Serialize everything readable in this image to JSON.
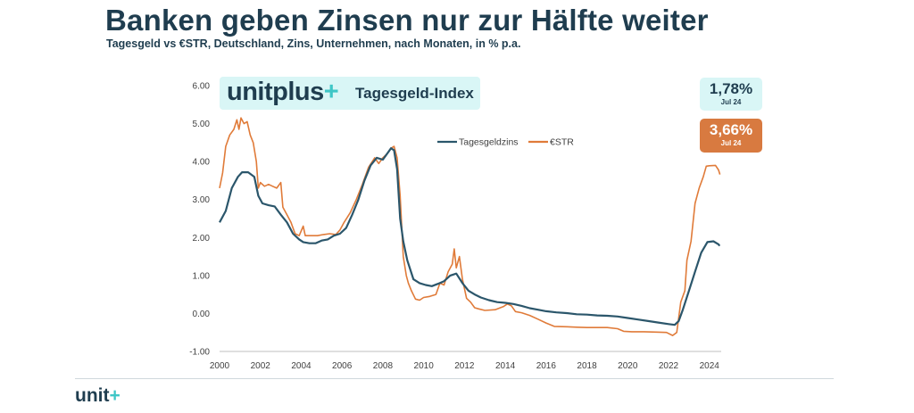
{
  "header": {
    "title": "Banken geben Zinsen nur zur Hälfte weiter",
    "subtitle": "Tagesgeld vs €STR, Deutschland, Zins, Unternehmen, nach Monaten, in % p.a."
  },
  "brand": {
    "logo_text": "unitplus",
    "logo_plus": "+",
    "index_label": "Tagesgeld-Index"
  },
  "badges": [
    {
      "value": "1,78%",
      "date": "Jul 24",
      "series": "Tagesgeldzins"
    },
    {
      "value": "3,66%",
      "date": "Jul 24",
      "series": "€STR"
    }
  ],
  "footer": {
    "logo_text": "unit",
    "logo_plus": "+"
  },
  "colors": {
    "tagesgeld": "#2b566b",
    "estr": "#e07b39",
    "text": "#1f3d4f",
    "accent": "#3ec6c6"
  },
  "chart_data": {
    "type": "line",
    "title": "",
    "xlabel": "",
    "ylabel": "",
    "xlim": [
      2000,
      2024.58
    ],
    "ylim": [
      -1,
      6
    ],
    "y_ticks": [
      -1,
      0,
      1,
      2,
      3,
      4,
      5,
      6
    ],
    "y_tick_labels": [
      "-1.00",
      "0.00",
      "1.00",
      "2.00",
      "3.00",
      "4.00",
      "5.00",
      "6.00"
    ],
    "x_ticks": [
      2000,
      2002,
      2004,
      2006,
      2008,
      2010,
      2012,
      2014,
      2016,
      2018,
      2020,
      2022,
      2024
    ],
    "x_tick_labels": [
      "2000",
      "2002",
      "2004",
      "2006",
      "2008",
      "2010",
      "2012",
      "2014",
      "2016",
      "2018",
      "2020",
      "2022",
      "2024"
    ],
    "legend_position": "top-center",
    "series": [
      {
        "name": "Tagesgeldzins",
        "points": [
          [
            2000,
            2.4
          ],
          [
            2000.3,
            2.7
          ],
          [
            2000.6,
            3.3
          ],
          [
            2000.9,
            3.6
          ],
          [
            2001.1,
            3.72
          ],
          [
            2001.4,
            3.72
          ],
          [
            2001.7,
            3.6
          ],
          [
            2001.9,
            3.1
          ],
          [
            2002.1,
            2.9
          ],
          [
            2002.4,
            2.85
          ],
          [
            2002.7,
            2.82
          ],
          [
            2003.0,
            2.6
          ],
          [
            2003.3,
            2.4
          ],
          [
            2003.6,
            2.1
          ],
          [
            2003.9,
            1.95
          ],
          [
            2004.1,
            1.88
          ],
          [
            2004.4,
            1.85
          ],
          [
            2004.7,
            1.85
          ],
          [
            2005.0,
            1.92
          ],
          [
            2005.3,
            1.95
          ],
          [
            2005.6,
            2.05
          ],
          [
            2005.9,
            2.1
          ],
          [
            2006.2,
            2.25
          ],
          [
            2006.5,
            2.6
          ],
          [
            2006.8,
            3.0
          ],
          [
            2007.1,
            3.5
          ],
          [
            2007.4,
            3.9
          ],
          [
            2007.7,
            4.1
          ],
          [
            2008.0,
            4.05
          ],
          [
            2008.2,
            4.2
          ],
          [
            2008.4,
            4.35
          ],
          [
            2008.55,
            4.3
          ],
          [
            2008.7,
            3.8
          ],
          [
            2008.85,
            2.5
          ],
          [
            2009.0,
            1.9
          ],
          [
            2009.2,
            1.4
          ],
          [
            2009.5,
            0.9
          ],
          [
            2009.8,
            0.8
          ],
          [
            2010.1,
            0.75
          ],
          [
            2010.4,
            0.72
          ],
          [
            2010.7,
            0.78
          ],
          [
            2011.0,
            0.85
          ],
          [
            2011.3,
            1.0
          ],
          [
            2011.6,
            1.05
          ],
          [
            2011.9,
            0.8
          ],
          [
            2012.2,
            0.6
          ],
          [
            2012.5,
            0.5
          ],
          [
            2012.8,
            0.42
          ],
          [
            2013.2,
            0.35
          ],
          [
            2013.6,
            0.3
          ],
          [
            2014.0,
            0.28
          ],
          [
            2014.4,
            0.25
          ],
          [
            2014.8,
            0.2
          ],
          [
            2015.2,
            0.14
          ],
          [
            2015.6,
            0.1
          ],
          [
            2016.0,
            0.06
          ],
          [
            2016.5,
            0.03
          ],
          [
            2017.0,
            0.01
          ],
          [
            2017.5,
            -0.02
          ],
          [
            2018.0,
            -0.03
          ],
          [
            2018.5,
            -0.05
          ],
          [
            2019.0,
            -0.06
          ],
          [
            2019.5,
            -0.08
          ],
          [
            2020.0,
            -0.12
          ],
          [
            2020.5,
            -0.16
          ],
          [
            2021.0,
            -0.2
          ],
          [
            2021.5,
            -0.24
          ],
          [
            2022.0,
            -0.28
          ],
          [
            2022.3,
            -0.3
          ],
          [
            2022.5,
            -0.2
          ],
          [
            2022.7,
            0.1
          ],
          [
            2023.0,
            0.6
          ],
          [
            2023.3,
            1.1
          ],
          [
            2023.6,
            1.6
          ],
          [
            2023.9,
            1.88
          ],
          [
            2024.2,
            1.9
          ],
          [
            2024.45,
            1.82
          ],
          [
            2024.5,
            1.78
          ]
        ]
      },
      {
        "name": "€STR",
        "points": [
          [
            2000,
            3.3
          ],
          [
            2000.15,
            3.7
          ],
          [
            2000.3,
            4.4
          ],
          [
            2000.5,
            4.7
          ],
          [
            2000.7,
            4.85
          ],
          [
            2000.85,
            5.1
          ],
          [
            2000.95,
            4.85
          ],
          [
            2001.05,
            5.15
          ],
          [
            2001.2,
            5.0
          ],
          [
            2001.35,
            5.05
          ],
          [
            2001.5,
            4.7
          ],
          [
            2001.65,
            4.5
          ],
          [
            2001.8,
            4.0
          ],
          [
            2001.9,
            3.3
          ],
          [
            2002.0,
            3.45
          ],
          [
            2002.2,
            3.35
          ],
          [
            2002.4,
            3.4
          ],
          [
            2002.6,
            3.35
          ],
          [
            2002.8,
            3.3
          ],
          [
            2003.0,
            3.45
          ],
          [
            2003.1,
            2.8
          ],
          [
            2003.3,
            2.6
          ],
          [
            2003.5,
            2.4
          ],
          [
            2003.7,
            2.1
          ],
          [
            2003.9,
            2.05
          ],
          [
            2004.1,
            2.3
          ],
          [
            2004.2,
            2.05
          ],
          [
            2004.5,
            2.05
          ],
          [
            2004.8,
            2.05
          ],
          [
            2005.1,
            2.08
          ],
          [
            2005.4,
            2.1
          ],
          [
            2005.7,
            2.08
          ],
          [
            2005.9,
            2.2
          ],
          [
            2006.1,
            2.4
          ],
          [
            2006.4,
            2.65
          ],
          [
            2006.7,
            3.0
          ],
          [
            2007.0,
            3.4
          ],
          [
            2007.3,
            3.85
          ],
          [
            2007.6,
            4.1
          ],
          [
            2007.8,
            3.95
          ],
          [
            2008.0,
            4.1
          ],
          [
            2008.2,
            4.2
          ],
          [
            2008.4,
            4.35
          ],
          [
            2008.55,
            4.4
          ],
          [
            2008.7,
            4.1
          ],
          [
            2008.85,
            3.1
          ],
          [
            2009.0,
            1.5
          ],
          [
            2009.15,
            1.0
          ],
          [
            2009.25,
            0.8
          ],
          [
            2009.4,
            0.6
          ],
          [
            2009.6,
            0.38
          ],
          [
            2009.8,
            0.35
          ],
          [
            2010.0,
            0.42
          ],
          [
            2010.3,
            0.45
          ],
          [
            2010.6,
            0.5
          ],
          [
            2010.8,
            0.8
          ],
          [
            2011.0,
            0.75
          ],
          [
            2011.2,
            1.1
          ],
          [
            2011.4,
            1.3
          ],
          [
            2011.5,
            1.7
          ],
          [
            2011.6,
            1.2
          ],
          [
            2011.75,
            1.5
          ],
          [
            2011.9,
            0.9
          ],
          [
            2012.1,
            0.4
          ],
          [
            2012.3,
            0.3
          ],
          [
            2012.5,
            0.15
          ],
          [
            2012.7,
            0.12
          ],
          [
            2013.0,
            0.08
          ],
          [
            2013.5,
            0.1
          ],
          [
            2013.9,
            0.18
          ],
          [
            2014.1,
            0.25
          ],
          [
            2014.3,
            0.2
          ],
          [
            2014.5,
            0.05
          ],
          [
            2014.8,
            0.02
          ],
          [
            2015.2,
            -0.05
          ],
          [
            2015.6,
            -0.15
          ],
          [
            2016.0,
            -0.25
          ],
          [
            2016.4,
            -0.34
          ],
          [
            2017.0,
            -0.35
          ],
          [
            2017.5,
            -0.36
          ],
          [
            2018.0,
            -0.37
          ],
          [
            2018.5,
            -0.37
          ],
          [
            2019.0,
            -0.37
          ],
          [
            2019.5,
            -0.4
          ],
          [
            2019.8,
            -0.47
          ],
          [
            2020.2,
            -0.48
          ],
          [
            2020.8,
            -0.48
          ],
          [
            2021.4,
            -0.49
          ],
          [
            2021.9,
            -0.5
          ],
          [
            2022.2,
            -0.58
          ],
          [
            2022.4,
            -0.5
          ],
          [
            2022.6,
            0.3
          ],
          [
            2022.8,
            0.6
          ],
          [
            2022.9,
            1.4
          ],
          [
            2023.1,
            1.9
          ],
          [
            2023.3,
            2.9
          ],
          [
            2023.5,
            3.3
          ],
          [
            2023.7,
            3.6
          ],
          [
            2023.85,
            3.88
          ],
          [
            2024.0,
            3.89
          ],
          [
            2024.3,
            3.9
          ],
          [
            2024.45,
            3.78
          ],
          [
            2024.52,
            3.66
          ]
        ]
      }
    ]
  }
}
